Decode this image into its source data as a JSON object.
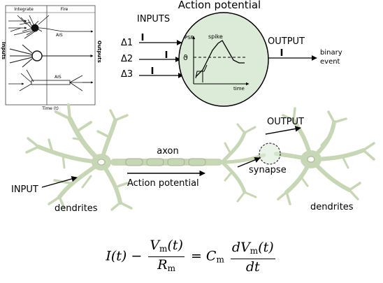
{
  "top_left_panel": {
    "integrate_label": "Integrate",
    "fire_label": "Fire",
    "inputs_label": "Inputs",
    "outputs_label": "Outputs",
    "ais_label_1": "AIS",
    "ais_label_2": "AIS",
    "time_label": "Time (t)"
  },
  "action_potential_panel": {
    "title": "Action potential",
    "inputs_label": "INPUTS",
    "input_1": "Δ1",
    "input_2": "Δ2",
    "input_3": "Δ3",
    "psp_label": "PSP",
    "spike_label": "spike",
    "theta_label": "ϑ",
    "time_label": "time",
    "output_label": "OUTPUT",
    "binary_line_1": "binary",
    "binary_line_2": "event"
  },
  "neuron_diagram": {
    "axon_label": "axon",
    "output_label": "OUTPUT",
    "synapse_label": "synapse",
    "input_label": "INPUT",
    "action_potential_label": "Action potential",
    "dendrites_left": "dendrites",
    "dendrites_right": "dendrites"
  },
  "formula": {
    "lhs_1": "I(t)",
    "minus": "−",
    "numerator_1": "V",
    "numerator_1_sub": "m",
    "numerator_1_rest": "(t)",
    "denominator_1": "R",
    "denominator_1_sub": "m",
    "equals": "=",
    "coef": "C",
    "coef_sub": "m",
    "numerator_2": "dV",
    "numerator_2_sub": "m",
    "numerator_2_rest": "(t)",
    "denominator_2": "dt"
  },
  "colors": {
    "neuron": "#c7d6b4",
    "neuron_dark": "#9fb68a",
    "soma_fill": "#dcebd8",
    "line": "#000000"
  }
}
